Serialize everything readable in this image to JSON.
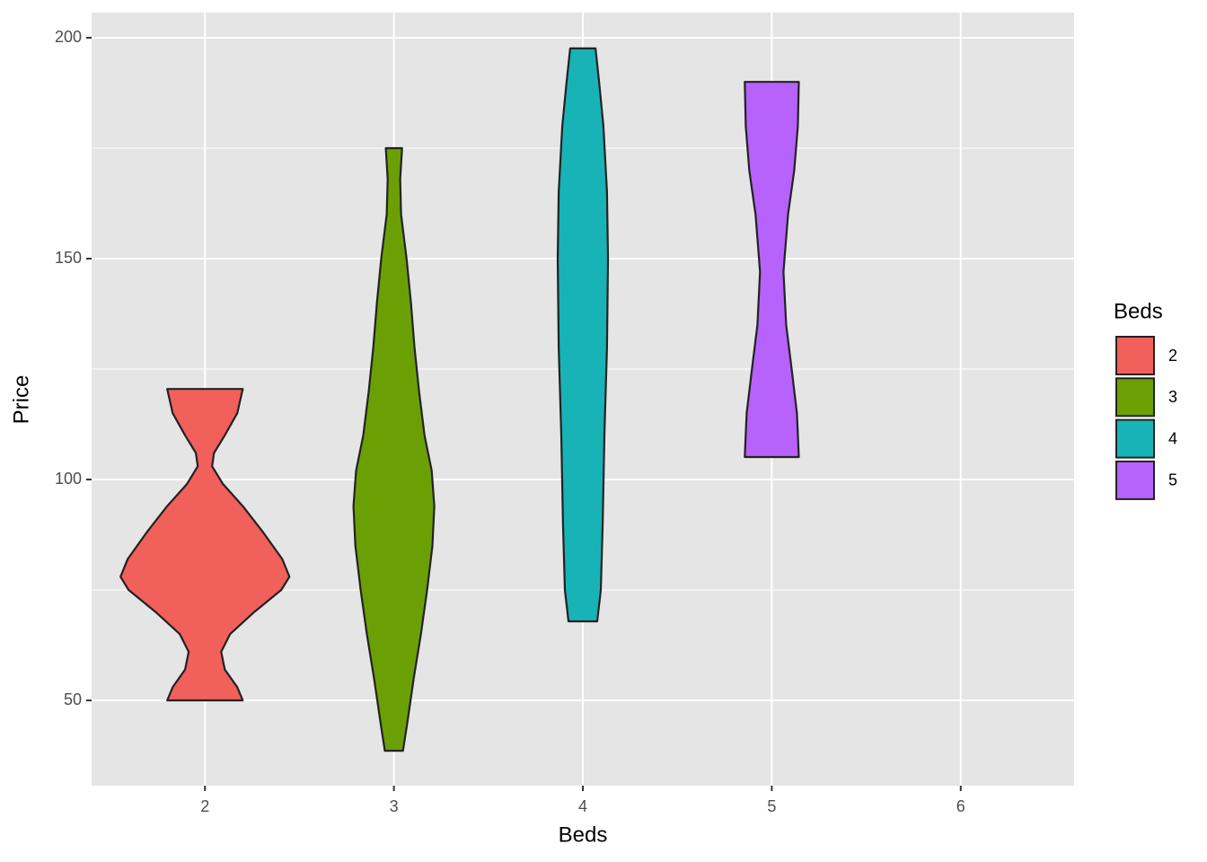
{
  "chart_data": {
    "type": "violin",
    "x_label": "Beds",
    "y_label": "Price",
    "xlim": [
      1.4,
      6.6
    ],
    "xticks": [
      2,
      3,
      4,
      5,
      6
    ],
    "ylim": [
      30.7,
      205.7
    ],
    "yticks": [
      50,
      100,
      150,
      200
    ],
    "yminor": [
      75,
      125,
      175
    ],
    "grid": true,
    "legend_title": "Beds",
    "legend_position": "right",
    "series": [
      {
        "name": "2",
        "color": "#F2605C",
        "x": 2,
        "y": [
          50,
          53,
          57,
          61,
          65,
          70,
          75,
          78,
          82,
          88,
          94,
          99,
          103,
          106,
          110,
          115,
          120.5
        ],
        "width": [
          0.2,
          0.171,
          0.105,
          0.086,
          0.133,
          0.261,
          0.404,
          0.447,
          0.409,
          0.309,
          0.2,
          0.095,
          0.038,
          0.048,
          0.105,
          0.171,
          0.2
        ]
      },
      {
        "name": "3",
        "color": "#6BA004",
        "x": 3,
        "y": [
          38.6,
          45,
          55,
          65,
          75,
          85,
          94,
          102,
          110,
          120,
          130,
          140,
          150,
          160,
          168,
          175
        ],
        "width": [
          0.048,
          0.071,
          0.105,
          0.143,
          0.176,
          0.204,
          0.214,
          0.2,
          0.162,
          0.133,
          0.109,
          0.09,
          0.067,
          0.038,
          0.033,
          0.043
        ]
      },
      {
        "name": "4",
        "color": "#18B3B7",
        "x": 4,
        "y": [
          67.9,
          75,
          90,
          110,
          130,
          150,
          165,
          180,
          190,
          197.6
        ],
        "width": [
          0.076,
          0.095,
          0.105,
          0.114,
          0.128,
          0.133,
          0.128,
          0.109,
          0.086,
          0.067
        ]
      },
      {
        "name": "5",
        "color": "#B762FB",
        "x": 5,
        "y": [
          105.1,
          115,
          125,
          135,
          147,
          160,
          170,
          180,
          190
        ],
        "width": [
          0.143,
          0.133,
          0.105,
          0.076,
          0.062,
          0.086,
          0.119,
          0.138,
          0.143
        ]
      }
    ]
  }
}
